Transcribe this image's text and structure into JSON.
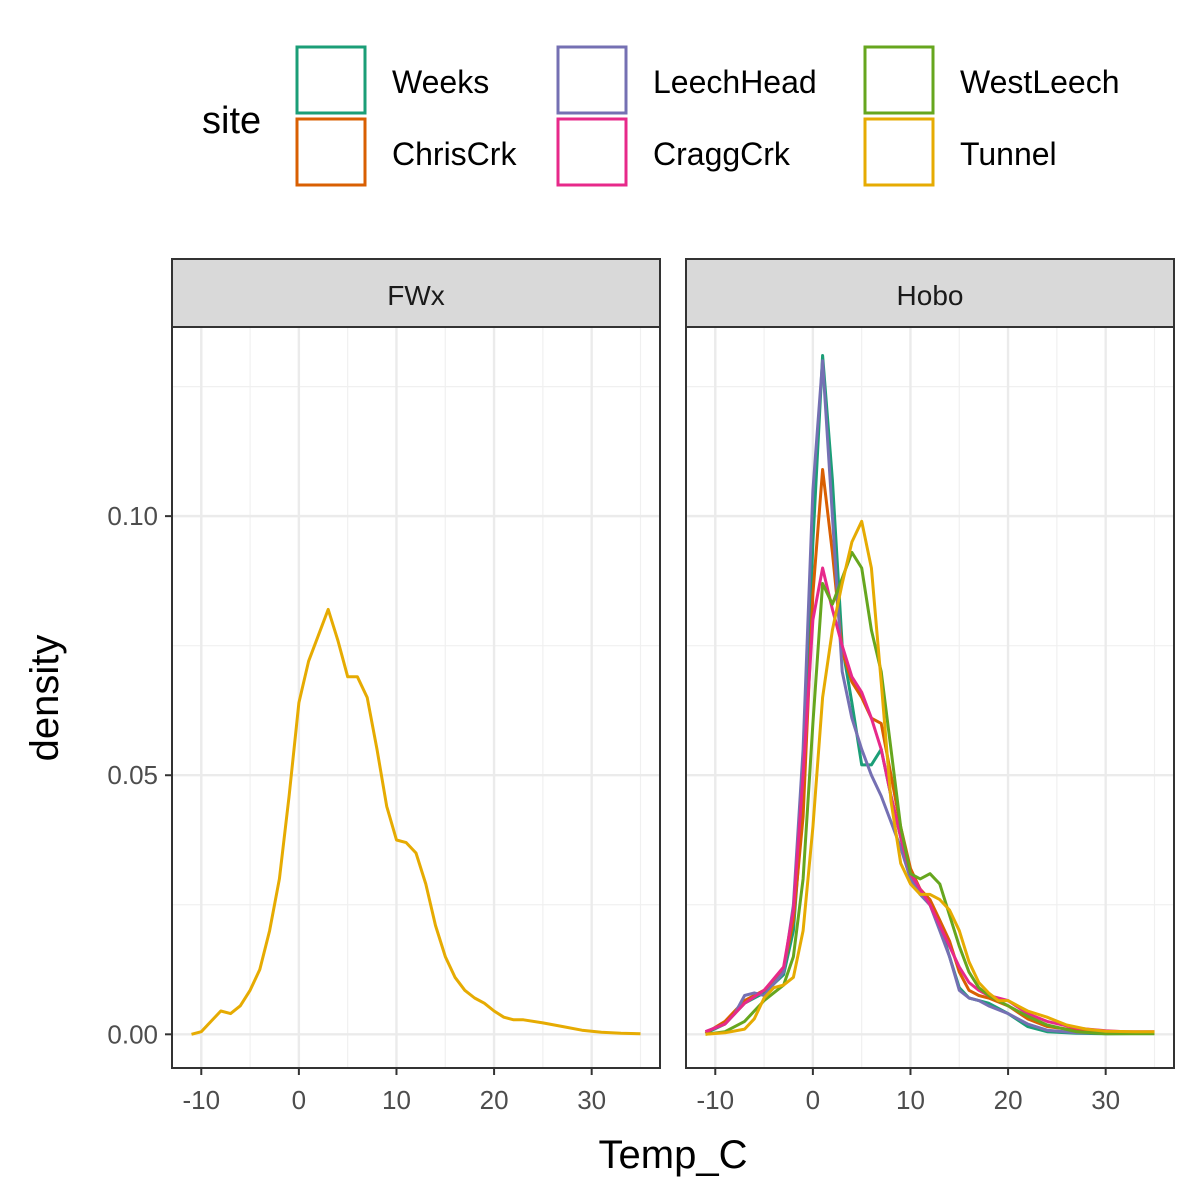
{
  "chart_data": {
    "type": "line",
    "xlabel": "Temp_C",
    "ylabel": "density",
    "xlim": [
      -13,
      37
    ],
    "ylim": [
      -0.0065,
      0.1365
    ],
    "x_ticks": [
      "-10",
      "0",
      "10",
      "20",
      "30"
    ],
    "x_tick_values": [
      -10,
      0,
      10,
      20,
      30
    ],
    "y_ticks": [
      "0.00",
      "0.05",
      "0.10"
    ],
    "y_tick_values": [
      0,
      0.05,
      0.1
    ],
    "grid": true,
    "legend": {
      "title": "site",
      "placement": "top",
      "entries": [
        "Weeks",
        "ChrisCrk",
        "LeechHead",
        "CraggCrk",
        "WestLeech",
        "Tunnel"
      ]
    },
    "colors": {
      "Weeks": "#1B9E77",
      "ChrisCrk": "#D95F02",
      "LeechHead": "#7570B3",
      "CraggCrk": "#E7298A",
      "WestLeech": "#66A61E",
      "Tunnel": "#E6AB02"
    },
    "panels": [
      {
        "name": "FWx",
        "series": [
          {
            "name": "Tunnel",
            "points": [
              [
                -11,
                0
              ],
              [
                -10,
                0.0005
              ],
              [
                -9,
                0.0025
              ],
              [
                -8,
                0.0045
              ],
              [
                -7,
                0.004
              ],
              [
                -6,
                0.0055
              ],
              [
                -5,
                0.0085
              ],
              [
                -4,
                0.0125
              ],
              [
                -3,
                0.02
              ],
              [
                -2,
                0.03
              ],
              [
                -1,
                0.046
              ],
              [
                0,
                0.064
              ],
              [
                1,
                0.072
              ],
              [
                2,
                0.077
              ],
              [
                3,
                0.082
              ],
              [
                4,
                0.076
              ],
              [
                5,
                0.069
              ],
              [
                6,
                0.069
              ],
              [
                7,
                0.065
              ],
              [
                8,
                0.055
              ],
              [
                9,
                0.044
              ],
              [
                10,
                0.0375
              ],
              [
                11,
                0.037
              ],
              [
                12,
                0.035
              ],
              [
                13,
                0.029
              ],
              [
                14,
                0.021
              ],
              [
                15,
                0.015
              ],
              [
                16,
                0.011
              ],
              [
                17,
                0.0085
              ],
              [
                18,
                0.007
              ],
              [
                19,
                0.006
              ],
              [
                20,
                0.0045
              ],
              [
                21,
                0.0033
              ],
              [
                22,
                0.0028
              ],
              [
                23,
                0.0028
              ],
              [
                25,
                0.0022
              ],
              [
                27,
                0.0015
              ],
              [
                29,
                0.0008
              ],
              [
                31,
                0.0004
              ],
              [
                33,
                0.0002
              ],
              [
                35,
                0.0001
              ]
            ]
          }
        ]
      },
      {
        "name": "Hobo",
        "series": [
          {
            "name": "Weeks",
            "points": [
              [
                -11,
                0.0002
              ],
              [
                -9,
                0.002
              ],
              [
                -7,
                0.006
              ],
              [
                -5,
                0.008
              ],
              [
                -3,
                0.0115
              ],
              [
                -2,
                0.02
              ],
              [
                -1,
                0.045
              ],
              [
                0,
                0.095
              ],
              [
                1,
                0.131
              ],
              [
                2,
                0.107
              ],
              [
                3,
                0.075
              ],
              [
                4,
                0.064
              ],
              [
                5,
                0.052
              ],
              [
                6,
                0.052
              ],
              [
                7,
                0.055
              ],
              [
                8,
                0.046
              ],
              [
                9,
                0.038
              ],
              [
                10,
                0.03
              ],
              [
                11,
                0.027
              ],
              [
                12,
                0.025
              ],
              [
                13,
                0.021
              ],
              [
                14,
                0.015
              ],
              [
                15,
                0.009
              ],
              [
                16,
                0.007
              ],
              [
                17,
                0.0065
              ],
              [
                18,
                0.006
              ],
              [
                20,
                0.004
              ],
              [
                22,
                0.0015
              ],
              [
                24,
                0.0005
              ],
              [
                27,
                0.0002
              ],
              [
                30,
                0.0001
              ],
              [
                35,
                0.0002
              ]
            ]
          },
          {
            "name": "ChrisCrk",
            "points": [
              [
                -11,
                0.0002
              ],
              [
                -9,
                0.0025
              ],
              [
                -7,
                0.0065
              ],
              [
                -5,
                0.0085
              ],
              [
                -3,
                0.0125
              ],
              [
                -2,
                0.022
              ],
              [
                -1,
                0.042
              ],
              [
                0,
                0.085
              ],
              [
                1,
                0.109
              ],
              [
                2,
                0.093
              ],
              [
                3,
                0.074
              ],
              [
                4,
                0.068
              ],
              [
                5,
                0.065
              ],
              [
                6,
                0.061
              ],
              [
                7,
                0.06
              ],
              [
                8,
                0.05
              ],
              [
                9,
                0.04
              ],
              [
                10,
                0.032
              ],
              [
                11,
                0.028
              ],
              [
                12,
                0.026
              ],
              [
                13,
                0.022
              ],
              [
                14,
                0.018
              ],
              [
                15,
                0.012
              ],
              [
                16,
                0.0085
              ],
              [
                17,
                0.0075
              ],
              [
                18,
                0.007
              ],
              [
                20,
                0.0055
              ],
              [
                22,
                0.003
              ],
              [
                24,
                0.0015
              ],
              [
                27,
                0.0008
              ],
              [
                30,
                0.0005
              ],
              [
                35,
                0.0002
              ]
            ]
          },
          {
            "name": "LeechHead",
            "points": [
              [
                -11,
                0.0005
              ],
              [
                -9,
                0.002
              ],
              [
                -8,
                0.004
              ],
              [
                -7,
                0.0075
              ],
              [
                -6,
                0.008
              ],
              [
                -5,
                0.0075
              ],
              [
                -3,
                0.012
              ],
              [
                -2,
                0.025
              ],
              [
                -1,
                0.055
              ],
              [
                0,
                0.105
              ],
              [
                1,
                0.13
              ],
              [
                2,
                0.1
              ],
              [
                3,
                0.07
              ],
              [
                4,
                0.061
              ],
              [
                5,
                0.055
              ],
              [
                6,
                0.05
              ],
              [
                7,
                0.046
              ],
              [
                8,
                0.041
              ],
              [
                9,
                0.036
              ],
              [
                10,
                0.03
              ],
              [
                11,
                0.027
              ],
              [
                12,
                0.025
              ],
              [
                13,
                0.02
              ],
              [
                14,
                0.015
              ],
              [
                15,
                0.0085
              ],
              [
                16,
                0.007
              ],
              [
                17,
                0.0065
              ],
              [
                18,
                0.0055
              ],
              [
                20,
                0.004
              ],
              [
                22,
                0.002
              ],
              [
                24,
                0.0008
              ],
              [
                27,
                0.0003
              ],
              [
                30,
                0.0002
              ],
              [
                35,
                0.0002
              ]
            ]
          },
          {
            "name": "CraggCrk",
            "points": [
              [
                -11,
                0.0005
              ],
              [
                -9,
                0.002
              ],
              [
                -7,
                0.006
              ],
              [
                -5,
                0.0085
              ],
              [
                -3,
                0.013
              ],
              [
                -2,
                0.024
              ],
              [
                -1,
                0.05
              ],
              [
                0,
                0.08
              ],
              [
                1,
                0.09
              ],
              [
                2,
                0.082
              ],
              [
                3,
                0.075
              ],
              [
                4,
                0.069
              ],
              [
                5,
                0.066
              ],
              [
                6,
                0.061
              ],
              [
                7,
                0.055
              ],
              [
                8,
                0.046
              ],
              [
                9,
                0.038
              ],
              [
                10,
                0.031
              ],
              [
                11,
                0.028
              ],
              [
                12,
                0.025
              ],
              [
                13,
                0.021
              ],
              [
                14,
                0.017
              ],
              [
                15,
                0.013
              ],
              [
                16,
                0.01
              ],
              [
                17,
                0.0085
              ],
              [
                18,
                0.0075
              ],
              [
                20,
                0.0065
              ],
              [
                22,
                0.004
              ],
              [
                24,
                0.0025
              ],
              [
                27,
                0.0012
              ],
              [
                30,
                0.0007
              ],
              [
                32,
                0.0005
              ],
              [
                35,
                0.0005
              ]
            ]
          },
          {
            "name": "WestLeech",
            "points": [
              [
                -11,
                0
              ],
              [
                -9,
                0.0005
              ],
              [
                -7,
                0.0025
              ],
              [
                -6,
                0.0045
              ],
              [
                -5,
                0.0065
              ],
              [
                -3,
                0.0095
              ],
              [
                -2,
                0.015
              ],
              [
                -1,
                0.03
              ],
              [
                0,
                0.06
              ],
              [
                1,
                0.087
              ],
              [
                2,
                0.083
              ],
              [
                3,
                0.088
              ],
              [
                4,
                0.093
              ],
              [
                5,
                0.09
              ],
              [
                6,
                0.078
              ],
              [
                7,
                0.07
              ],
              [
                8,
                0.055
              ],
              [
                9,
                0.04
              ],
              [
                10,
                0.031
              ],
              [
                11,
                0.03
              ],
              [
                12,
                0.031
              ],
              [
                13,
                0.029
              ],
              [
                14,
                0.023
              ],
              [
                15,
                0.017
              ],
              [
                16,
                0.012
              ],
              [
                17,
                0.009
              ],
              [
                18,
                0.0075
              ],
              [
                20,
                0.0055
              ],
              [
                22,
                0.0035
              ],
              [
                24,
                0.0018
              ],
              [
                27,
                0.0005
              ],
              [
                30,
                0.0001
              ],
              [
                35,
                0.0001
              ]
            ]
          },
          {
            "name": "Tunnel",
            "points": [
              [
                -11,
                0
              ],
              [
                -9,
                0.0003
              ],
              [
                -7,
                0.001
              ],
              [
                -6,
                0.003
              ],
              [
                -5,
                0.007
              ],
              [
                -4,
                0.009
              ],
              [
                -3,
                0.0095
              ],
              [
                -2,
                0.011
              ],
              [
                -1,
                0.02
              ],
              [
                0,
                0.04
              ],
              [
                1,
                0.065
              ],
              [
                2,
                0.078
              ],
              [
                3,
                0.087
              ],
              [
                4,
                0.095
              ],
              [
                5,
                0.099
              ],
              [
                6,
                0.09
              ],
              [
                7,
                0.068
              ],
              [
                8,
                0.045
              ],
              [
                9,
                0.033
              ],
              [
                10,
                0.029
              ],
              [
                11,
                0.027
              ],
              [
                12,
                0.027
              ],
              [
                13,
                0.026
              ],
              [
                14,
                0.024
              ],
              [
                15,
                0.02
              ],
              [
                16,
                0.014
              ],
              [
                17,
                0.01
              ],
              [
                18,
                0.008
              ],
              [
                19,
                0.0065
              ],
              [
                20,
                0.0065
              ],
              [
                21,
                0.0055
              ],
              [
                22,
                0.0045
              ],
              [
                24,
                0.0033
              ],
              [
                26,
                0.0018
              ],
              [
                28,
                0.001
              ],
              [
                30,
                0.0006
              ],
              [
                33,
                0.0005
              ],
              [
                35,
                0.0005
              ]
            ]
          }
        ]
      }
    ]
  }
}
